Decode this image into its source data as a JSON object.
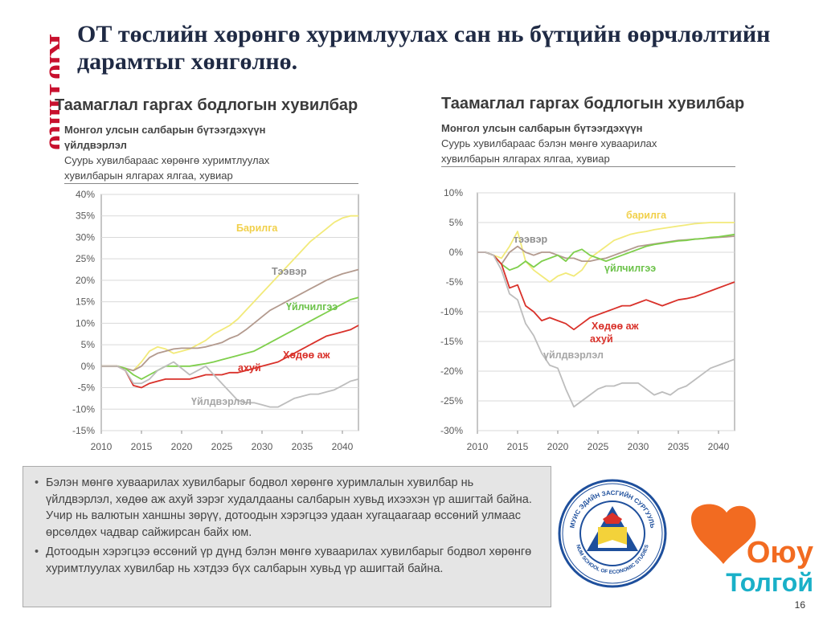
{
  "brand": {
    "name": "RioTinto"
  },
  "title": "ОТ төслийн хөрөнгө хуримлуулах сан нь бүтцийн өөрчлөлтийн дарамтыг хөнгөлнө.",
  "left_chart": {
    "heading": "Таамаглал гаргах бодлогын хувилбар",
    "desc_line1": "Монгол улсын салбарын бүтээгдэхүүн",
    "desc_line2": "үйлдвэрлэл",
    "desc_line3": "Суурь хувилбараас хөрөнгө хуримтлуулах",
    "desc_line4": "хувилбарын ялгарах ялгаа, хувиар"
  },
  "right_chart": {
    "heading": "Таамаглал гаргах бодлогын хувилбар",
    "desc_line1": "Монгол улсын салбарын бүтээгдэхүүн",
    "desc_line2": "Суурь хувилбараас бэлэн мөнгө хуваарилах",
    "desc_line3": "хувилбарын ялгарах ялгаа, хувиар"
  },
  "chart_data": [
    {
      "type": "line",
      "x": [
        2010,
        2011,
        2012,
        2013,
        2014,
        2015,
        2016,
        2017,
        2018,
        2019,
        2020,
        2021,
        2022,
        2023,
        2024,
        2025,
        2026,
        2027,
        2028,
        2029,
        2030,
        2031,
        2032,
        2033,
        2034,
        2035,
        2036,
        2037,
        2038,
        2039,
        2040,
        2041,
        2042
      ],
      "xticks": [
        2010,
        2015,
        2020,
        2025,
        2030,
        2035,
        2040
      ],
      "yticks": [
        "40%",
        "35%",
        "30%",
        "25%",
        "20%",
        "15%",
        "10%",
        "5%",
        "0%",
        "-5%",
        "-10%",
        "-15%"
      ],
      "ylim": [
        -15,
        40
      ],
      "series": [
        {
          "name": "Барилга",
          "label_lines": [
            "Барилга"
          ],
          "color": "#f2ea7a",
          "label_color": "#f1d04a",
          "values": [
            0,
            0,
            0,
            -0.5,
            -1,
            1,
            3.5,
            4.5,
            4,
            3,
            3.5,
            4,
            5,
            6,
            7.5,
            8.5,
            9.5,
            11,
            13,
            15,
            17,
            19,
            21,
            23,
            25,
            27,
            29,
            30.5,
            32,
            33.5,
            34.5,
            35,
            35
          ]
        },
        {
          "name": "Тээвэр",
          "label_lines": [
            "Тээвэр"
          ],
          "color": "#b39a8e",
          "label_color": "#8e8e8e",
          "values": [
            0,
            0,
            0,
            -0.5,
            -1,
            0,
            2,
            3,
            3.5,
            4,
            4.2,
            4.2,
            4.2,
            4.5,
            5,
            5.5,
            6.5,
            7.2,
            8.5,
            10,
            11.5,
            13,
            14,
            15,
            16,
            17,
            18,
            19,
            20,
            20.8,
            21.5,
            22,
            22.5
          ]
        },
        {
          "name": "Үйлчилгээ",
          "label_lines": [
            "Үйлчилгээ"
          ],
          "color": "#7fcf4c",
          "label_color": "#6cc24a",
          "values": [
            0,
            0,
            0,
            -0.5,
            -2,
            -3,
            -2,
            -1,
            0,
            0,
            0,
            0,
            0.3,
            0.6,
            1,
            1.5,
            2,
            2.5,
            3,
            3.5,
            4.5,
            5.5,
            6.5,
            7.5,
            8.5,
            9.5,
            10.5,
            11.5,
            12.5,
            13.5,
            14.5,
            15.5,
            16
          ]
        },
        {
          "name": "Хөдөө аж ахуй",
          "label_lines": [
            "Хөдөө аж",
            "ахуй"
          ],
          "color": "#d9312a",
          "label_color": "#d9312a",
          "values": [
            0,
            0,
            0,
            -1,
            -4.5,
            -5,
            -4,
            -3.5,
            -3,
            -3,
            -3,
            -3,
            -2.5,
            -2,
            -2,
            -2,
            -1.5,
            -1.5,
            -1,
            -0.5,
            0,
            0.5,
            1,
            2,
            3,
            4,
            5,
            6,
            7,
            7.5,
            8,
            8.5,
            9.5
          ]
        },
        {
          "name": "Үйлдвэрлэл",
          "label_lines": [
            "Үйлдвэрлэл"
          ],
          "color": "#bdbdbd",
          "label_color": "#a6a6a6",
          "values": [
            0,
            0,
            0,
            -1,
            -4,
            -4,
            -3,
            -1,
            0,
            1,
            -0.5,
            -2,
            -1,
            0,
            -2,
            -4,
            -6,
            -8,
            -8.5,
            -8.5,
            -9,
            -9.5,
            -9.5,
            -8.5,
            -7.5,
            -7,
            -6.5,
            -6.5,
            -6,
            -5.5,
            -4.5,
            -3.5,
            -3
          ]
        }
      ]
    },
    {
      "type": "line",
      "x": [
        2010,
        2011,
        2012,
        2013,
        2014,
        2015,
        2016,
        2017,
        2018,
        2019,
        2020,
        2021,
        2022,
        2023,
        2024,
        2025,
        2026,
        2027,
        2028,
        2029,
        2030,
        2031,
        2032,
        2033,
        2034,
        2035,
        2036,
        2037,
        2038,
        2039,
        2040,
        2041,
        2042
      ],
      "xticks": [
        2010,
        2015,
        2020,
        2025,
        2030,
        2035,
        2040
      ],
      "yticks": [
        "10%",
        "5%",
        "0%",
        "-5%",
        "-10%",
        "-15%",
        "-20%",
        "-25%",
        "-30%"
      ],
      "ylim": [
        -30,
        10
      ],
      "series": [
        {
          "name": "барилга",
          "label_lines": [
            "барилга"
          ],
          "color": "#f2ea7a",
          "label_color": "#f1d04a",
          "values": [
            0,
            0,
            -0.5,
            -1,
            1,
            3.5,
            -1.5,
            -3,
            -4,
            -5,
            -4,
            -3.5,
            -4,
            -3,
            -1,
            0,
            1,
            2,
            2.5,
            3,
            3.3,
            3.5,
            3.8,
            4,
            4.2,
            4.4,
            4.6,
            4.8,
            4.9,
            5,
            5,
            5,
            5
          ]
        },
        {
          "name": "тээвэр",
          "label_lines": [
            "тээвэр"
          ],
          "color": "#b39a8e",
          "label_color": "#8e8e8e",
          "values": [
            0,
            0,
            -0.5,
            -2,
            0,
            1,
            0,
            -0.5,
            0,
            0,
            -0.5,
            -1,
            -1,
            -1.5,
            -1.5,
            -1.2,
            -1,
            -0.5,
            0,
            0.5,
            1,
            1.2,
            1.4,
            1.6,
            1.8,
            2,
            2.1,
            2.2,
            2.3,
            2.4,
            2.5,
            2.6,
            2.7
          ]
        },
        {
          "name": "үйлчилгээ",
          "label_lines": [
            "үйлчилгээ"
          ],
          "color": "#7fcf4c",
          "label_color": "#6cc24a",
          "values": [
            0,
            0,
            -0.5,
            -2,
            -3,
            -2.5,
            -1.5,
            -2.5,
            -1.5,
            -1,
            -0.5,
            -1.5,
            0,
            0.5,
            -0.5,
            -1,
            -1.5,
            -1,
            -0.5,
            0,
            0.5,
            1,
            1.3,
            1.5,
            1.7,
            1.9,
            2,
            2.2,
            2.3,
            2.5,
            2.6,
            2.8,
            3
          ]
        },
        {
          "name": "Хөдөө аж ахуй",
          "label_lines": [
            "Хөдөө аж",
            "ахуй"
          ],
          "color": "#d9312a",
          "label_color": "#d9312a",
          "values": [
            0,
            0,
            -0.5,
            -2,
            -6,
            -5.5,
            -9,
            -10,
            -11.5,
            -11,
            -11.5,
            -12,
            -13,
            -12,
            -11,
            -10.5,
            -10,
            -9.5,
            -9,
            -9,
            -8.5,
            -8,
            -8.5,
            -9,
            -8.5,
            -8,
            -7.8,
            -7.5,
            -7,
            -6.5,
            -6,
            -5.5,
            -5
          ]
        },
        {
          "name": "үйлдвэрлэл",
          "label_lines": [
            "үйлдвэрлэл"
          ],
          "color": "#bdbdbd",
          "label_color": "#a6a6a6",
          "values": [
            0,
            0,
            -0.5,
            -3,
            -7,
            -8,
            -12,
            -14,
            -17,
            -19,
            -19.5,
            -23,
            -26,
            -25,
            -24,
            -23,
            -22.5,
            -22.5,
            -22,
            -22,
            -22,
            -23,
            -24,
            -23.5,
            -24,
            -23,
            -22.5,
            -21.5,
            -20.5,
            -19.5,
            -19,
            -18.5,
            -18
          ]
        }
      ]
    }
  ],
  "notes": {
    "bullet_symbol": "•",
    "items": [
      "Бэлэн мөнгө хуваарилах хувилбарыг  бодвол хөрөнгө хуримлалын хувилбар нь үйлдвэрлэл, хөдөө аж ахуй зэрэг худалдааны салбарын хувьд ихээхэн үр ашигтай байна. Учир нь валютын ханшны зөрүү, дотоодын хэрэгцээ удаан хугацаагаар өссөний улмаас өрсөлдөх чадвар сайжирсан байх юм.",
      "Дотоодын хэрэгцээ өссөний үр дүнд бэлэн мөнгө хуваарилах хувилбарыг бодвол хөрөнгө хуримтлуулах хувилбар нь хэтдээ бүх салбарын хувьд үр ашигтай байна."
    ]
  },
  "seal": {
    "arc_text": "МУИС ЭДИЙН ЗАСГИЙН СУРГУУЛЬ",
    "arc_text_bottom": "NUM SCHOOL OF ECONOMIC STUDIES"
  },
  "ot_logo": {
    "line1": "Оюу",
    "line2": "Толгой"
  },
  "page_number": "16",
  "colors": {
    "title": "#1f2a44",
    "rio_tinto": "#c8102e",
    "oyu_tolgoi_orange": "#f26b21",
    "oyu_tolgoi_teal": "#1ab0c8",
    "seal_blue": "#1e4f9c"
  }
}
